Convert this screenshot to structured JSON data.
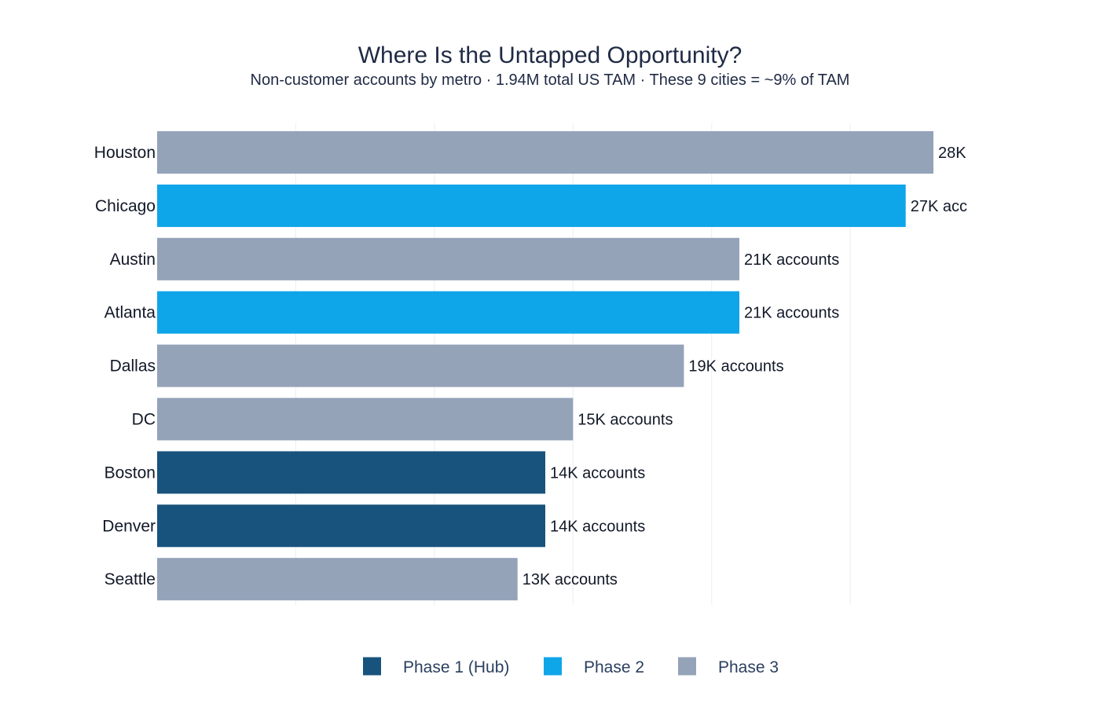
{
  "chart_data": {
    "type": "bar",
    "orientation": "horizontal",
    "title": "Where Is the Untapped Opportunity?",
    "subtitle": "Non-customer accounts by metro · 1.94M total US TAM · These 9 cities = ~9% of TAM",
    "xlabel": "",
    "ylabel": "",
    "xlim": [
      0,
      28000
    ],
    "x_ticks": [
      5000,
      10000,
      15000,
      20000,
      25000
    ],
    "x_ticks_labeled": false,
    "grid": true,
    "legend_position": "bottom",
    "colors": {
      "Phase 1 (Hub)": "#18537d",
      "Phase 2": "#0fa5e9",
      "Phase 3": "#94a3b8"
    },
    "legend": [
      "Phase 1 (Hub)",
      "Phase 2",
      "Phase 3"
    ],
    "categories": [
      "Houston",
      "Chicago",
      "Austin",
      "Atlanta",
      "Dallas",
      "DC",
      "Boston",
      "Denver",
      "Seattle"
    ],
    "values": [
      28000,
      27000,
      21000,
      21000,
      19000,
      15000,
      14000,
      14000,
      13000
    ],
    "phases": [
      "Phase 3",
      "Phase 2",
      "Phase 3",
      "Phase 2",
      "Phase 3",
      "Phase 3",
      "Phase 1 (Hub)",
      "Phase 1 (Hub)",
      "Phase 3"
    ],
    "data_labels": [
      "28K",
      "27K acc",
      "21K accounts",
      "21K accounts",
      "19K accounts",
      "15K accounts",
      "14K accounts",
      "14K accounts",
      "13K accounts"
    ]
  }
}
